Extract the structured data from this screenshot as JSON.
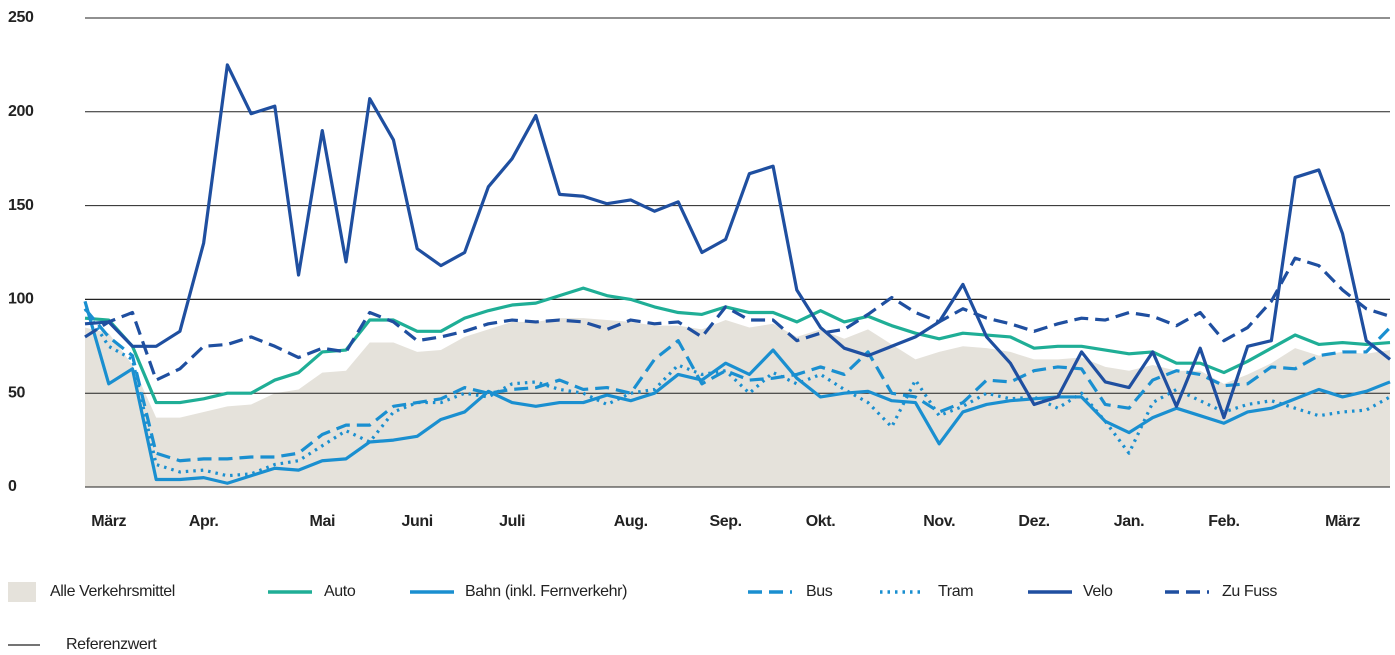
{
  "chart_data": {
    "type": "line",
    "categories": [
      null,
      "März",
      null,
      null,
      null,
      "Apr.",
      null,
      null,
      null,
      null,
      "Mai",
      null,
      null,
      null,
      "Juni",
      null,
      null,
      null,
      "Juli",
      null,
      null,
      null,
      null,
      "Aug.",
      null,
      null,
      null,
      "Sep.",
      null,
      null,
      null,
      "Okt.",
      null,
      null,
      null,
      null,
      "Nov.",
      null,
      null,
      null,
      "Dez.",
      null,
      null,
      null,
      "Jan.",
      null,
      null,
      null,
      "Feb.",
      null,
      null,
      null,
      null,
      "März",
      null,
      null
    ],
    "ylim": [
      0,
      250
    ],
    "yticks": [
      0,
      50,
      100,
      150,
      200,
      250
    ],
    "grid": true,
    "reference": {
      "name": "Referenzwert",
      "value": 100
    },
    "series": [
      {
        "name": "Alle Verkehrsmittel",
        "kind": "area",
        "color": "#e5e2db",
        "values": [
          85,
          82,
          65,
          37,
          37,
          40,
          43,
          44,
          50,
          52,
          61,
          62,
          77,
          77,
          72,
          73,
          80,
          84,
          88,
          88,
          90,
          90,
          89,
          88,
          86,
          86,
          84,
          89,
          85,
          87,
          80,
          84,
          79,
          84,
          76,
          68,
          72,
          75,
          74,
          72,
          68,
          68,
          69,
          64,
          62,
          65,
          62,
          62,
          55,
          60,
          66,
          74,
          70,
          72,
          71,
          73
        ]
      },
      {
        "name": "Auto",
        "kind": "line",
        "dash": "solid",
        "color": "#1fae96",
        "values": [
          90,
          89,
          75,
          45,
          45,
          47,
          50,
          50,
          57,
          61,
          72,
          73,
          89,
          89,
          83,
          83,
          90,
          94,
          97,
          98,
          102,
          106,
          102,
          100,
          96,
          93,
          92,
          96,
          93,
          93,
          88,
          94,
          88,
          91,
          86,
          82,
          79,
          82,
          81,
          80,
          74,
          75,
          75,
          73,
          71,
          72,
          66,
          66,
          61,
          67,
          74,
          81,
          76,
          77,
          76,
          77
        ]
      },
      {
        "name": "Bahn (inkl. Fernverkehr)",
        "kind": "line",
        "dash": "solid",
        "color": "#1a8fd0",
        "values": [
          99,
          55,
          63,
          4,
          4,
          5,
          2,
          6,
          10,
          9,
          14,
          15,
          24,
          25,
          27,
          36,
          40,
          51,
          45,
          43,
          45,
          45,
          49,
          46,
          50,
          60,
          57,
          66,
          60,
          73,
          58,
          48,
          50,
          51,
          46,
          45,
          23,
          40,
          44,
          46,
          47,
          48,
          48,
          35,
          29,
          37,
          42,
          38,
          34,
          40,
          42,
          47,
          52,
          48,
          51,
          56
        ]
      },
      {
        "name": "Bus",
        "kind": "line",
        "dash": "dashed",
        "color": "#1a8fd0",
        "values": [
          95,
          80,
          70,
          18,
          14,
          15,
          15,
          16,
          16,
          18,
          28,
          33,
          33,
          43,
          45,
          47,
          53,
          50,
          52,
          53,
          57,
          52,
          53,
          50,
          68,
          78,
          55,
          62,
          57,
          58,
          60,
          64,
          60,
          72,
          50,
          48,
          40,
          45,
          57,
          56,
          62,
          64,
          63,
          44,
          42,
          57,
          62,
          60,
          54,
          55,
          64,
          63,
          70,
          72,
          72,
          85
        ]
      },
      {
        "name": "Tram",
        "kind": "line",
        "dash": "dotted",
        "color": "#1a8fd0",
        "values": [
          95,
          75,
          68,
          12,
          8,
          9,
          6,
          7,
          12,
          14,
          22,
          30,
          24,
          40,
          45,
          45,
          50,
          48,
          55,
          56,
          52,
          50,
          44,
          50,
          52,
          65,
          60,
          62,
          50,
          61,
          55,
          60,
          52,
          45,
          32,
          57,
          38,
          43,
          50,
          47,
          48,
          42,
          50,
          35,
          18,
          45,
          52,
          46,
          40,
          44,
          46,
          42,
          38,
          40,
          41,
          48
        ]
      },
      {
        "name": "Velo",
        "kind": "line",
        "dash": "solid",
        "color": "#1f4fa0",
        "values": [
          87,
          88,
          75,
          75,
          83,
          130,
          225,
          199,
          203,
          113,
          190,
          120,
          207,
          185,
          127,
          118,
          125,
          160,
          175,
          198,
          156,
          155,
          151,
          153,
          147,
          152,
          125,
          132,
          167,
          171,
          105,
          85,
          74,
          70,
          75,
          80,
          88,
          108,
          80,
          66,
          44,
          48,
          72,
          56,
          53,
          72,
          43,
          74,
          37,
          75,
          78,
          165,
          169,
          135,
          78,
          68
        ]
      },
      {
        "name": "Zu Fuss",
        "kind": "line",
        "dash": "dashed",
        "color": "#1f4fa0",
        "values": [
          80,
          88,
          93,
          57,
          63,
          75,
          76,
          80,
          75,
          69,
          74,
          72,
          93,
          88,
          78,
          80,
          83,
          87,
          89,
          88,
          89,
          88,
          84,
          89,
          87,
          88,
          80,
          96,
          89,
          89,
          78,
          82,
          84,
          92,
          101,
          93,
          88,
          95,
          90,
          87,
          83,
          87,
          90,
          89,
          93,
          91,
          86,
          93,
          78,
          85,
          99,
          122,
          118,
          105,
          95,
          91
        ]
      }
    ]
  }
}
